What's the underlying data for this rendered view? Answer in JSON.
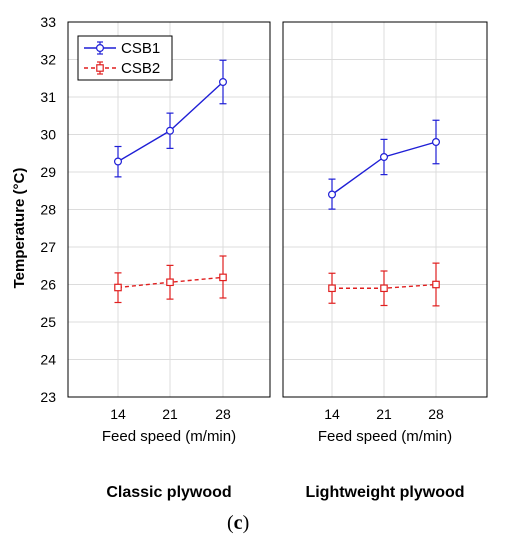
{
  "chart_data": {
    "type": "line",
    "ylabel": "Temperature (°C)",
    "ylim": [
      23,
      33
    ],
    "yticks": [
      "23",
      "24",
      "25",
      "26",
      "27",
      "28",
      "29",
      "30",
      "31",
      "32",
      "33"
    ],
    "grid": true,
    "legend_placement": "top-left",
    "caption": {
      "open": "(",
      "letter": "c",
      "close": ")"
    },
    "series_styles": [
      {
        "name": "CSB1",
        "color": "#1f1fd6",
        "dash": "solid",
        "marker": "circle"
      },
      {
        "name": "CSB2",
        "color": "#e01f1f",
        "dash": "dashed",
        "marker": "square"
      }
    ],
    "panels": [
      {
        "title": "Classic plywood",
        "xlabel": "Feed speed (m/min)",
        "categories": [
          "14",
          "21",
          "28"
        ],
        "series": [
          {
            "name": "CSB1",
            "values": [
              29.28,
              30.1,
              31.4
            ],
            "err_low": [
              28.87,
              29.63,
              30.82
            ],
            "err_high": [
              29.68,
              30.57,
              31.98
            ]
          },
          {
            "name": "CSB2",
            "values": [
              25.92,
              26.06,
              26.19
            ],
            "err_low": [
              25.52,
              25.61,
              25.64
            ],
            "err_high": [
              26.31,
              26.51,
              26.76
            ]
          }
        ]
      },
      {
        "title": "Lightweight plywood",
        "xlabel": "Feed speed (m/min)",
        "categories": [
          "14",
          "21",
          "28"
        ],
        "series": [
          {
            "name": "CSB1",
            "values": [
              28.4,
              29.4,
              29.8
            ],
            "err_low": [
              28.01,
              28.93,
              29.22
            ],
            "err_high": [
              28.81,
              29.87,
              30.38
            ]
          },
          {
            "name": "CSB2",
            "values": [
              25.9,
              25.9,
              26.0
            ],
            "err_low": [
              25.5,
              25.44,
              25.43
            ],
            "err_high": [
              26.3,
              26.36,
              26.57
            ]
          }
        ]
      }
    ]
  }
}
